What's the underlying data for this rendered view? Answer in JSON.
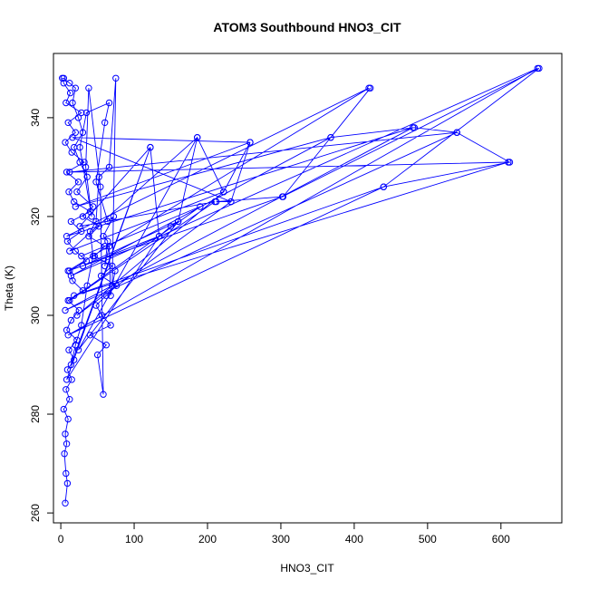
{
  "chart_data": {
    "type": "line",
    "title": "ATOM3 Southbound HNO3_CIT",
    "xlabel": "HNO3_CIT",
    "ylabel": "Theta (K)",
    "xlim": [
      -10,
      683
    ],
    "ylim": [
      258,
      353
    ],
    "x_ticks": [
      0,
      100,
      200,
      300,
      400,
      500,
      600
    ],
    "y_ticks": [
      260,
      280,
      300,
      320,
      340
    ],
    "grid": false,
    "legend": "none",
    "color": "#0000ff",
    "series": [
      {
        "mode": "lines+markers",
        "points": [
          [
            6,
            262
          ],
          [
            9,
            266
          ],
          [
            7,
            268
          ],
          [
            5,
            272
          ],
          [
            8,
            274
          ],
          [
            6,
            276
          ],
          [
            10,
            279
          ],
          [
            4,
            281
          ],
          [
            12,
            283
          ],
          [
            7,
            285
          ],
          [
            15,
            287
          ],
          [
            9,
            289
          ],
          [
            18,
            291
          ],
          [
            11,
            293
          ],
          [
            22,
            295
          ],
          [
            8,
            297
          ],
          [
            14,
            299
          ],
          [
            25,
            301
          ],
          [
            10,
            303
          ],
          [
            30,
            305
          ],
          [
            16,
            307
          ],
          [
            12,
            309
          ],
          [
            35,
            311
          ],
          [
            20,
            313
          ],
          [
            9,
            315
          ],
          [
            28,
            317
          ],
          [
            14,
            319
          ],
          [
            40,
            321
          ],
          [
            18,
            323
          ],
          [
            11,
            325
          ],
          [
            24,
            327
          ],
          [
            8,
            329
          ],
          [
            32,
            331
          ],
          [
            15,
            333
          ],
          [
            6,
            335
          ],
          [
            20,
            337
          ],
          [
            10,
            339
          ],
          [
            28,
            341
          ],
          [
            7,
            343
          ],
          [
            13,
            345
          ],
          [
            4,
            347
          ],
          [
            2,
            348
          ],
          [
            4,
            348
          ],
          [
            12,
            347
          ],
          [
            20,
            346
          ],
          [
            16,
            343
          ],
          [
            24,
            340
          ],
          [
            30,
            337
          ],
          [
            18,
            334
          ],
          [
            26,
            331
          ],
          [
            36,
            328
          ],
          [
            22,
            325
          ],
          [
            44,
            322
          ],
          [
            30,
            320
          ],
          [
            52,
            318
          ],
          [
            38,
            316
          ],
          [
            60,
            314
          ],
          [
            46,
            312
          ],
          [
            70,
            310
          ],
          [
            55,
            308
          ],
          [
            76,
            306
          ],
          [
            62,
            304
          ],
          [
            48,
            302
          ],
          [
            56,
            300
          ],
          [
            68,
            298
          ],
          [
            40,
            296
          ],
          [
            62,
            294
          ],
          [
            50,
            292
          ],
          [
            58,
            284
          ],
          [
            54,
            326
          ],
          [
            38,
            346
          ],
          [
            34,
            330
          ],
          [
            42,
            320
          ],
          [
            26,
            334
          ],
          [
            35,
            341
          ],
          [
            66,
            343
          ],
          [
            60,
            339
          ],
          [
            48,
            327
          ],
          [
            64,
            319
          ],
          [
            72,
            320
          ],
          [
            58,
            316
          ],
          [
            64,
            315
          ],
          [
            60,
            310
          ],
          [
            66,
            314
          ],
          [
            68,
            304
          ],
          [
            74,
            309
          ],
          [
            70,
            306
          ],
          [
            75,
            348
          ],
          [
            66,
            330
          ],
          [
            52,
            328
          ],
          [
            48,
            319
          ],
          [
            40,
            317
          ],
          [
            44,
            312
          ],
          [
            36,
            306
          ],
          [
            28,
            298
          ],
          [
            20,
            294
          ],
          [
            14,
            290
          ],
          [
            122,
            334
          ],
          [
            134,
            316
          ],
          [
            150,
            318
          ],
          [
            160,
            319
          ],
          [
            186,
            336
          ],
          [
            222,
            325
          ],
          [
            258,
            335
          ],
          [
            232,
            323
          ],
          [
            212,
            323
          ],
          [
            303,
            324
          ],
          [
            422,
            346
          ],
          [
            368,
            336
          ],
          [
            482,
            338
          ],
          [
            540,
            337
          ],
          [
            612,
            331
          ],
          [
            440,
            326
          ],
          [
            652,
            350
          ],
          [
            302,
            324
          ],
          [
            10,
            309
          ],
          [
            420,
            346
          ],
          [
            8,
            316
          ],
          [
            480,
            338
          ],
          [
            6,
            301
          ],
          [
            540,
            337
          ],
          [
            12,
            329
          ],
          [
            610,
            331
          ],
          [
            18,
            304
          ],
          [
            440,
            326
          ],
          [
            10,
            296
          ],
          [
            650,
            350
          ],
          [
            14,
            308
          ],
          [
            368,
            336
          ],
          [
            20,
            322
          ],
          [
            258,
            335
          ],
          [
            16,
            336
          ],
          [
            232,
            323
          ],
          [
            22,
            300
          ],
          [
            222,
            325
          ],
          [
            12,
            313
          ],
          [
            186,
            336
          ],
          [
            24,
            293
          ],
          [
            160,
            319
          ],
          [
            30,
            310
          ],
          [
            134,
            316
          ],
          [
            8,
            287
          ],
          [
            122,
            334
          ],
          [
            26,
            318
          ],
          [
            210,
            323
          ],
          [
            12,
            303
          ],
          [
            190,
            322
          ],
          [
            28,
            312
          ]
        ]
      }
    ]
  }
}
